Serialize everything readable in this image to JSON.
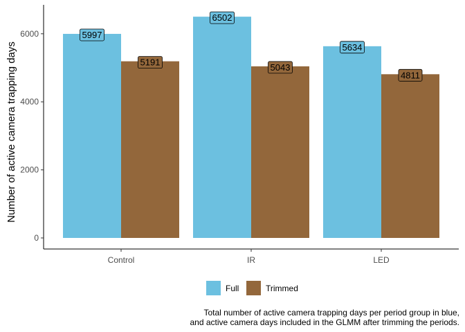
{
  "chart_data": {
    "type": "bar",
    "categories": [
      "Control",
      "IR",
      "LED"
    ],
    "series": [
      {
        "name": "Full",
        "color": "#6cc0e0",
        "values": [
          5997,
          6502,
          5634
        ]
      },
      {
        "name": "Trimmed",
        "color": "#93673b",
        "values": [
          5191,
          5043,
          4811
        ]
      }
    ],
    "xlabel": "",
    "ylabel": "Number of active camera trapping days",
    "ylim": [
      0,
      6850
    ],
    "yticks": [
      0,
      2000,
      4000,
      6000
    ],
    "grid": false,
    "legend_position": "bottom",
    "caption": [
      "Total number of active camera trapping days per period group in blue,",
      "and active camera days included in the GLMM after trimming the periods."
    ]
  }
}
